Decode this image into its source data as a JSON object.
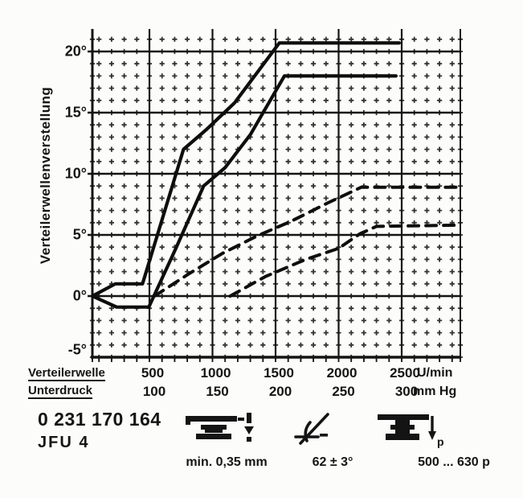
{
  "figure": {
    "y_axis_title": "Verteilerwellenverstellung",
    "y_tick_labels": [
      "-5°",
      "0°",
      "5°",
      "10°",
      "15°",
      "20°"
    ],
    "x_axis": {
      "row1_label": "Verteilerwelle",
      "row1_values": [
        "500",
        "1000",
        "1500",
        "2000",
        "2500"
      ],
      "row1_unit": "U/min",
      "row2_label": "Unterdruck",
      "row2_values": [
        "100",
        "150",
        "200",
        "250",
        "300"
      ],
      "row2_unit": "mm Hg"
    },
    "part_number": "0 231 170 164",
    "model_code": "JFU 4",
    "specs": [
      {
        "icon": "contact-gap-icon",
        "value": "min. 0,35 mm"
      },
      {
        "icon": "dwell-angle-icon",
        "value": "62 ± 3°"
      },
      {
        "icon": "contact-pressure-icon",
        "value": "500 ... 630 p",
        "arrow_label": "p"
      }
    ],
    "ink_color": "#141414"
  },
  "chart_data": {
    "type": "line",
    "title": "",
    "xlabel_primary": "Verteilerwelle (U/min)",
    "xlabel_secondary": "Unterdruck (mm Hg)",
    "ylabel": "Verteilerwellenverstellung (°)",
    "x_axis_primary": {
      "unit": "U/min",
      "range": [
        0,
        3000
      ],
      "ticks": [
        500,
        1000,
        1500,
        2000,
        2500
      ]
    },
    "x_axis_secondary": {
      "unit": "mm Hg",
      "range": [
        55,
        347
      ],
      "ticks": [
        100,
        150,
        200,
        250,
        300
      ]
    },
    "y_axis": {
      "unit": "deg",
      "range": [
        -5,
        21.8
      ],
      "ticks": [
        -5,
        0,
        5,
        10,
        15,
        20
      ]
    },
    "grid": {
      "major": true,
      "minor": "cross-dots",
      "minor_step_rpm": 100,
      "minor_step_deg": 1
    },
    "legend_position": "none",
    "series": [
      {
        "name": "centrifugal-advance-upper-limit",
        "style": "solid",
        "scale": "rpm",
        "points": [
          [
            48,
            0
          ],
          [
            230,
            1.0
          ],
          [
            445,
            1.0
          ],
          [
            770,
            12.0
          ],
          [
            950,
            13.6
          ],
          [
            1175,
            15.8
          ],
          [
            1530,
            20.7
          ],
          [
            2480,
            20.7
          ]
        ]
      },
      {
        "name": "centrifugal-advance-lower-limit",
        "style": "solid",
        "scale": "rpm",
        "points": [
          [
            48,
            0
          ],
          [
            240,
            -0.9
          ],
          [
            495,
            -0.9
          ],
          [
            705,
            3.8
          ],
          [
            930,
            9.0
          ],
          [
            1100,
            10.5
          ],
          [
            1300,
            13.2
          ],
          [
            1570,
            18.0
          ],
          [
            2455,
            18.0
          ]
        ]
      },
      {
        "name": "vacuum-advance-upper-limit",
        "style": "dashed",
        "scale": "mmHg",
        "points": [
          [
            104,
            0
          ],
          [
            131,
            1.8
          ],
          [
            158,
            3.5
          ],
          [
            185,
            4.9
          ],
          [
            212,
            6.1
          ],
          [
            241,
            7.6
          ],
          [
            268,
            8.9
          ],
          [
            346,
            8.9
          ]
        ]
      },
      {
        "name": "vacuum-advance-lower-limit",
        "style": "dashed",
        "scale": "mmHg",
        "points": [
          [
            164,
            0
          ],
          [
            192,
            1.6
          ],
          [
            224,
            3.0
          ],
          [
            250,
            3.9
          ],
          [
            267,
            5.1
          ],
          [
            280,
            5.7
          ],
          [
            346,
            5.8
          ]
        ]
      }
    ]
  }
}
